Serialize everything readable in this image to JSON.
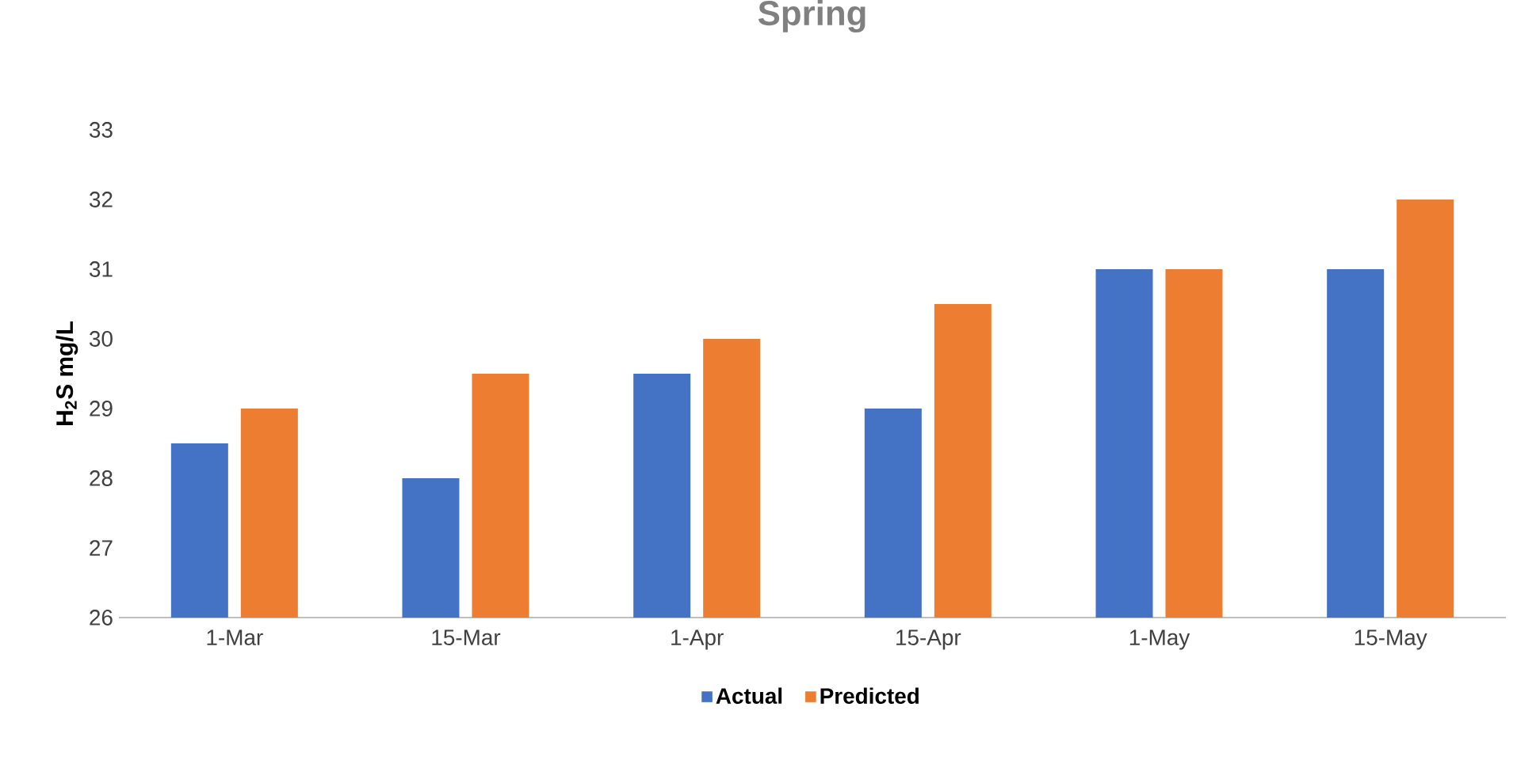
{
  "chart_data": {
    "type": "bar",
    "title": "Spring",
    "ylabel": "H$_{2}$S mg/L",
    "categories": [
      "1-Mar",
      "15-Mar",
      "1-Apr",
      "15-Apr",
      "1-May",
      "15-May"
    ],
    "series": [
      {
        "name": "Actual",
        "color": "#4472c4",
        "values": [
          28.5,
          28,
          29.5,
          29,
          31,
          31
        ]
      },
      {
        "name": "Predicted",
        "color": "#ed7d31",
        "values": [
          29,
          29.5,
          30,
          30.5,
          31,
          32
        ]
      }
    ],
    "ylim": [
      26,
      33
    ],
    "yticks": [
      26,
      27,
      28,
      29,
      30,
      31,
      32,
      33
    ],
    "legend": "bottom"
  }
}
